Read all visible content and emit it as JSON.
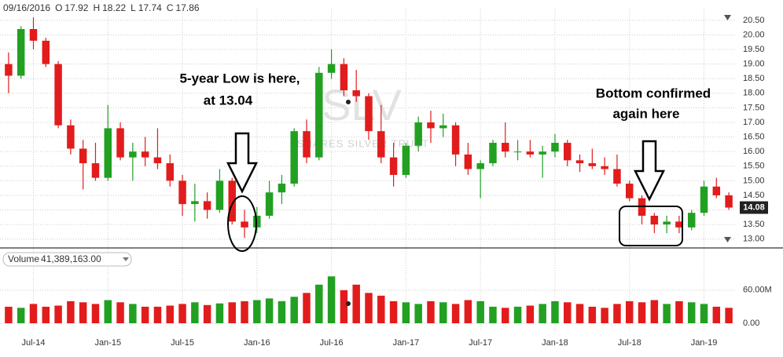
{
  "chart_data": {
    "type": "candlestick",
    "header": {
      "date": "09/16/2016",
      "ohlc_labels": [
        "O",
        "H",
        "L",
        "C"
      ],
      "ohlc_values": [
        17.92,
        18.22,
        17.74,
        17.86
      ]
    },
    "watermark": {
      "symbol": "SLV",
      "name": "iSHARES SILVER TRUST"
    },
    "annotations": [
      "5-year Low is here,",
      "at 13.04",
      "Bottom confirmed",
      "again here"
    ],
    "categories": [
      null,
      null,
      "Jul-14",
      null,
      null,
      null,
      null,
      null,
      "Jan-15",
      null,
      null,
      null,
      null,
      null,
      "Jul-15",
      null,
      null,
      null,
      null,
      null,
      "Jan-16",
      null,
      null,
      null,
      null,
      null,
      "Jul-16",
      null,
      null,
      null,
      null,
      null,
      "Jan-17",
      null,
      null,
      null,
      null,
      null,
      "Jul-17",
      null,
      null,
      null,
      null,
      null,
      "Jan-18",
      null,
      null,
      null,
      null,
      null,
      "Jul-18",
      null,
      null,
      null,
      null,
      null,
      "Jan-19",
      null,
      null
    ],
    "open": [
      19.0,
      18.6,
      20.2,
      19.8,
      19.0,
      16.9,
      16.1,
      15.6,
      15.1,
      16.8,
      15.8,
      16.0,
      15.8,
      15.6,
      15.0,
      14.2,
      14.3,
      14.0,
      15.0,
      13.6,
      13.4,
      13.8,
      14.6,
      14.9,
      16.7,
      15.8,
      18.7,
      19.0,
      18.1,
      17.9,
      16.7,
      15.8,
      15.2,
      16.2,
      17.0,
      16.8,
      16.9,
      15.9,
      15.4,
      15.6,
      16.3,
      16.0,
      16.0,
      15.9,
      16.0,
      16.3,
      15.7,
      15.6,
      15.5,
      15.4,
      14.9,
      14.4,
      13.8,
      13.5,
      13.6,
      13.4,
      13.9,
      14.8,
      14.5
    ],
    "high": [
      19.4,
      20.3,
      20.6,
      19.9,
      19.1,
      17.1,
      16.4,
      16.3,
      17.6,
      17.0,
      16.3,
      16.5,
      16.8,
      15.9,
      15.2,
      14.9,
      14.6,
      15.4,
      15.1,
      14.0,
      14.1,
      15.0,
      15.2,
      16.8,
      17.1,
      18.9,
      19.5,
      19.2,
      18.8,
      18.0,
      17.6,
      16.3,
      16.3,
      17.2,
      17.4,
      17.3,
      17.0,
      16.3,
      15.7,
      16.4,
      17.0,
      16.4,
      16.4,
      16.2,
      16.6,
      16.4,
      15.9,
      16.1,
      15.8,
      15.9,
      15.0,
      14.5,
      13.9,
      13.8,
      13.8,
      14.0,
      15.0,
      15.1,
      14.6
    ],
    "low": [
      18.0,
      18.5,
      19.5,
      18.9,
      16.8,
      15.9,
      14.7,
      15.0,
      15.0,
      15.7,
      15.0,
      15.5,
      15.4,
      14.8,
      13.8,
      13.6,
      13.7,
      13.9,
      13.5,
      13.04,
      13.2,
      13.7,
      14.2,
      14.8,
      15.6,
      15.7,
      18.5,
      17.9,
      17.7,
      16.4,
      15.6,
      14.8,
      15.1,
      16.0,
      16.3,
      16.5,
      15.5,
      15.2,
      14.4,
      15.5,
      15.8,
      15.7,
      15.8,
      15.1,
      15.8,
      15.5,
      15.3,
      15.4,
      15.2,
      14.8,
      14.3,
      13.5,
      13.2,
      13.2,
      13.2,
      13.3,
      13.8,
      14.4,
      14.0
    ],
    "close": [
      18.6,
      20.2,
      19.8,
      19.0,
      16.9,
      16.1,
      15.6,
      15.1,
      16.8,
      15.8,
      16.0,
      15.8,
      15.6,
      15.0,
      14.2,
      14.3,
      14.0,
      15.0,
      13.6,
      13.4,
      13.8,
      14.6,
      14.9,
      16.7,
      15.8,
      18.7,
      19.0,
      18.1,
      17.9,
      16.7,
      15.8,
      15.2,
      16.2,
      17.0,
      16.8,
      16.9,
      15.9,
      15.4,
      15.6,
      16.3,
      16.0,
      16.0,
      15.9,
      16.0,
      16.3,
      15.7,
      15.6,
      15.5,
      15.4,
      14.9,
      14.4,
      13.8,
      13.5,
      13.6,
      13.4,
      13.9,
      14.8,
      14.5,
      14.08
    ],
    "up_color": "#22a022",
    "down_color": "#e21c1c",
    "ylim": [
      12.75,
      20.9
    ],
    "yticks": [
      {
        "value": 13,
        "label": "13.00"
      },
      {
        "value": 13.5,
        "label": "13.50"
      },
      {
        "value": 14,
        "label": "14.00"
      },
      {
        "value": 14.5,
        "label": "14.50"
      },
      {
        "value": 15,
        "label": "15.00"
      },
      {
        "value": 15.5,
        "label": "15.50"
      },
      {
        "value": 16,
        "label": "16.00"
      },
      {
        "value": 16.5,
        "label": "16.50"
      },
      {
        "value": 17,
        "label": "17.00"
      },
      {
        "value": 17.5,
        "label": "17.50"
      },
      {
        "value": 18,
        "label": "18.00"
      },
      {
        "value": 18.5,
        "label": "18.50"
      },
      {
        "value": 19,
        "label": "19.00"
      },
      {
        "value": 19.5,
        "label": "19.50"
      },
      {
        "value": 20,
        "label": "20.00"
      },
      {
        "value": 20.5,
        "label": "20.50"
      }
    ],
    "last_price": 14.08,
    "grid": true,
    "volume": {
      "label": "Volume",
      "current": 41389163,
      "current_label": "41,389,163.00",
      "values": [
        30000000,
        28000000,
        35000000,
        30000000,
        32000000,
        40000000,
        38000000,
        35000000,
        42000000,
        38000000,
        35000000,
        30000000,
        30000000,
        32000000,
        35000000,
        38000000,
        33000000,
        36000000,
        38000000,
        40000000,
        42000000,
        45000000,
        40000000,
        48000000,
        55000000,
        70000000,
        85000000,
        60000000,
        70000000,
        55000000,
        50000000,
        40000000,
        38000000,
        35000000,
        40000000,
        38000000,
        35000000,
        42000000,
        40000000,
        30000000,
        28000000,
        30000000,
        32000000,
        35000000,
        40000000,
        38000000,
        35000000,
        30000000,
        28000000,
        35000000,
        40000000,
        38000000,
        42000000,
        35000000,
        40000000,
        38000000,
        35000000,
        30000000,
        28000000
      ],
      "ylim": [
        0,
        128000000
      ],
      "yticks": [
        {
          "value": 0,
          "label": "0.00"
        },
        {
          "value": 60000000,
          "label": "60.00M"
        }
      ]
    }
  }
}
